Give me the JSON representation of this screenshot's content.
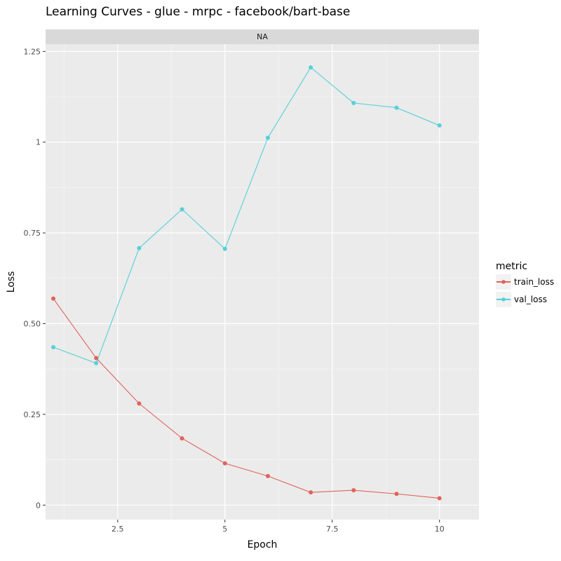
{
  "chart_data": {
    "type": "line",
    "title": "Learning Curves - glue - mrpc - facebook/bart-base",
    "facet_label": "NA",
    "xlabel": "Epoch",
    "ylabel": "Loss",
    "xlim": [
      0.82,
      10.92
    ],
    "ylim": [
      -0.04,
      1.27
    ],
    "x_ticks": [
      {
        "value": 2.5,
        "label": "2.5"
      },
      {
        "value": 5,
        "label": "5"
      },
      {
        "value": 7.5,
        "label": "7.5"
      },
      {
        "value": 10,
        "label": "10"
      }
    ],
    "y_ticks": [
      {
        "value": 0,
        "label": "0"
      },
      {
        "value": 0.25,
        "label": "0.25"
      },
      {
        "value": 0.5,
        "label": "0.50"
      },
      {
        "value": 0.75,
        "label": "0.75"
      },
      {
        "value": 1.0,
        "label": "1"
      },
      {
        "value": 1.25,
        "label": "1.25"
      }
    ],
    "grid": true,
    "legend": {
      "title": "metric",
      "position": "right"
    },
    "x": [
      1,
      2,
      3,
      4,
      5,
      6,
      7,
      8,
      9,
      10
    ],
    "series": [
      {
        "name": "train_loss",
        "color": "#e0625a",
        "values": [
          0.569,
          0.405,
          0.28,
          0.184,
          0.115,
          0.08,
          0.035,
          0.041,
          0.031,
          0.019
        ]
      },
      {
        "name": "val_loss",
        "color": "#55d0d8",
        "values": [
          0.435,
          0.391,
          0.708,
          0.815,
          0.706,
          1.012,
          1.206,
          1.108,
          1.095,
          1.046
        ]
      }
    ]
  }
}
